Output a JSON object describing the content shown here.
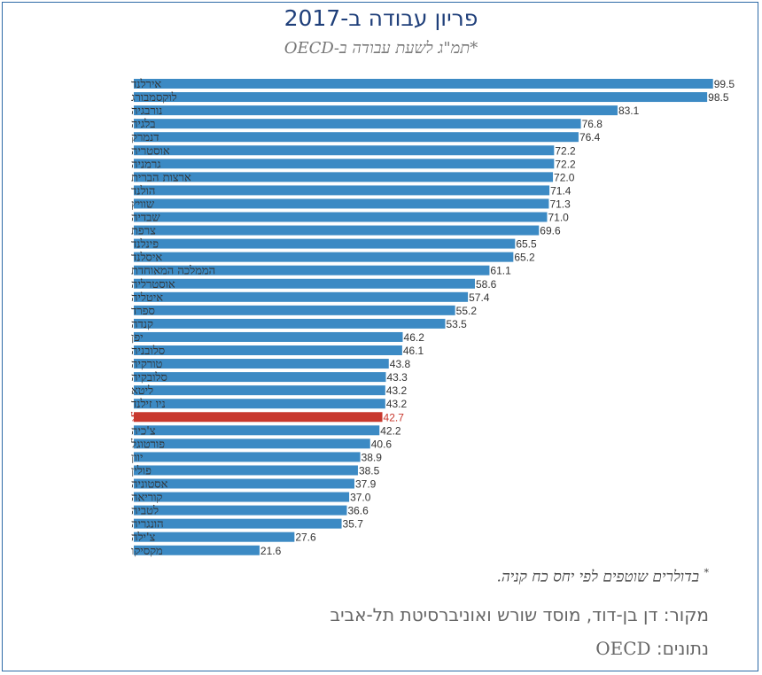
{
  "header": {
    "title": "פריון עבודה ב-2017",
    "subtitle": "*תמ\"ג לשעת עבודה ב-OECD"
  },
  "footer": {
    "note_mark": "*",
    "note": "בדולרים שוטפים לפי יחס כח קניה.",
    "source": "מקור:  דן בן-דוד, מוסד שורש ואוניברסיטת תל-אביב",
    "data_label": "נתונים:",
    "data_source": "OECD"
  },
  "colors": {
    "bar": "#3c8ac4",
    "highlight": "#c8382e",
    "title": "#1f3f7a"
  },
  "chart_data": {
    "type": "bar",
    "orientation": "horizontal",
    "categories": [
      "אירלנד",
      "לוקסמבורג",
      "נורבגיה",
      "בלגיה",
      "דנמרק",
      "אוסטריה",
      "גרמניה",
      "ארצות הברית",
      "הולנד",
      "שוויץ",
      "שבדיה",
      "צרפת",
      "פינלנד",
      "איסלנד",
      "הממלכה המאוחדת",
      "אוסטרליה",
      "איטליה",
      "ספרד",
      "קנדה",
      "יפן",
      "סלובניה",
      "טורקיה",
      "סלובקיה",
      "ליטא",
      "ניו זילנד",
      "ישראל",
      "צ'כיה",
      "פורטוגל",
      "יוון",
      "פולין",
      "אסטוניה",
      "קוריאה",
      "לטביה",
      "הונגריה",
      "צ'ילה",
      "מקסיקו"
    ],
    "values": [
      99.5,
      98.5,
      83.1,
      76.8,
      76.4,
      72.2,
      72.2,
      72.0,
      71.4,
      71.3,
      71.0,
      69.6,
      65.5,
      65.2,
      61.1,
      58.6,
      57.4,
      55.2,
      53.5,
      46.2,
      46.1,
      43.8,
      43.3,
      43.2,
      43.2,
      42.7,
      42.2,
      40.6,
      38.9,
      38.5,
      37.9,
      37.0,
      36.6,
      35.7,
      27.6,
      21.6
    ],
    "value_labels": [
      "99.5",
      "98.5",
      "83.1",
      "76.8",
      "76.4",
      "72.2",
      "72.2",
      "72.0",
      "71.4",
      "71.3",
      "71.0",
      "69.6",
      "65.5",
      "65.2",
      "61.1",
      "58.6",
      "57.4",
      "55.2",
      "53.5",
      "46.2",
      "46.1",
      "43.8",
      "43.3",
      "43.2",
      "43.2",
      "42.7",
      "42.2",
      "40.6",
      "38.9",
      "38.5",
      "37.9",
      "37.0",
      "36.6",
      "35.7",
      "27.6",
      "21.6"
    ],
    "highlight": "ישראל",
    "xlim": [
      0,
      100
    ],
    "grid": false,
    "legend": "none"
  }
}
